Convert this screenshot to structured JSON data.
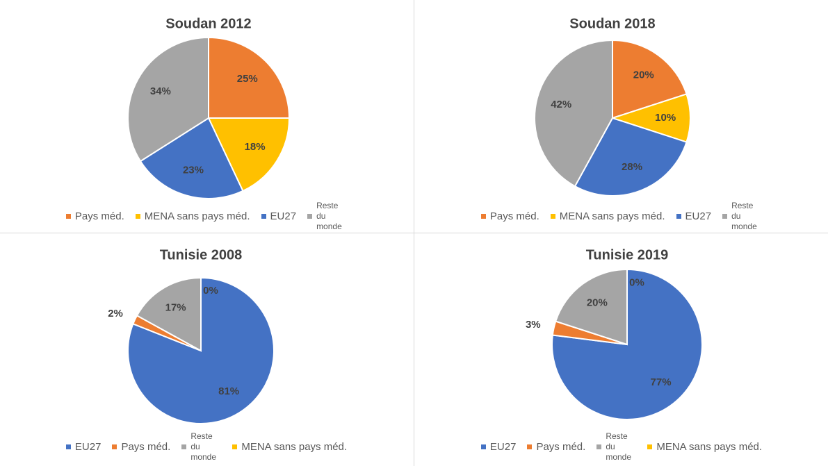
{
  "chart_data": [
    {
      "type": "pie",
      "title": "Soudan 2012",
      "categories": [
        "Pays méd.",
        "MENA sans pays méd.",
        "EU27",
        "Reste du monde"
      ],
      "values": [
        25,
        18,
        23,
        34
      ],
      "value_labels": [
        "25%",
        "18%",
        "23%",
        "34%"
      ],
      "colors": [
        "#ed7d31",
        "#ffc000",
        "#4472c4",
        "#a5a5a5"
      ]
    },
    {
      "type": "pie",
      "title": "Soudan 2018",
      "categories": [
        "Pays méd.",
        "MENA sans pays méd.",
        "EU27",
        "Reste du monde"
      ],
      "values": [
        20,
        10,
        28,
        42
      ],
      "value_labels": [
        "20%",
        "10%",
        "28%",
        "42%"
      ],
      "colors": [
        "#ed7d31",
        "#ffc000",
        "#4472c4",
        "#a5a5a5"
      ]
    },
    {
      "type": "pie",
      "title": "Tunisie 2008",
      "categories": [
        "EU27",
        "Pays méd.",
        "Reste du monde",
        "MENA sans pays méd."
      ],
      "values": [
        81,
        2,
        17,
        0
      ],
      "value_labels": [
        "81%",
        "2%",
        "17%",
        "0%"
      ],
      "colors": [
        "#4472c4",
        "#ed7d31",
        "#a5a5a5",
        "#ffc000"
      ]
    },
    {
      "type": "pie",
      "title": "Tunisie 2019",
      "categories": [
        "EU27",
        "Pays méd.",
        "Reste du monde",
        "MENA sans pays méd."
      ],
      "values": [
        77,
        3,
        20,
        0
      ],
      "value_labels": [
        "77%",
        "3%",
        "20%",
        "0%"
      ],
      "colors": [
        "#4472c4",
        "#ed7d31",
        "#a5a5a5",
        "#ffc000"
      ]
    }
  ]
}
